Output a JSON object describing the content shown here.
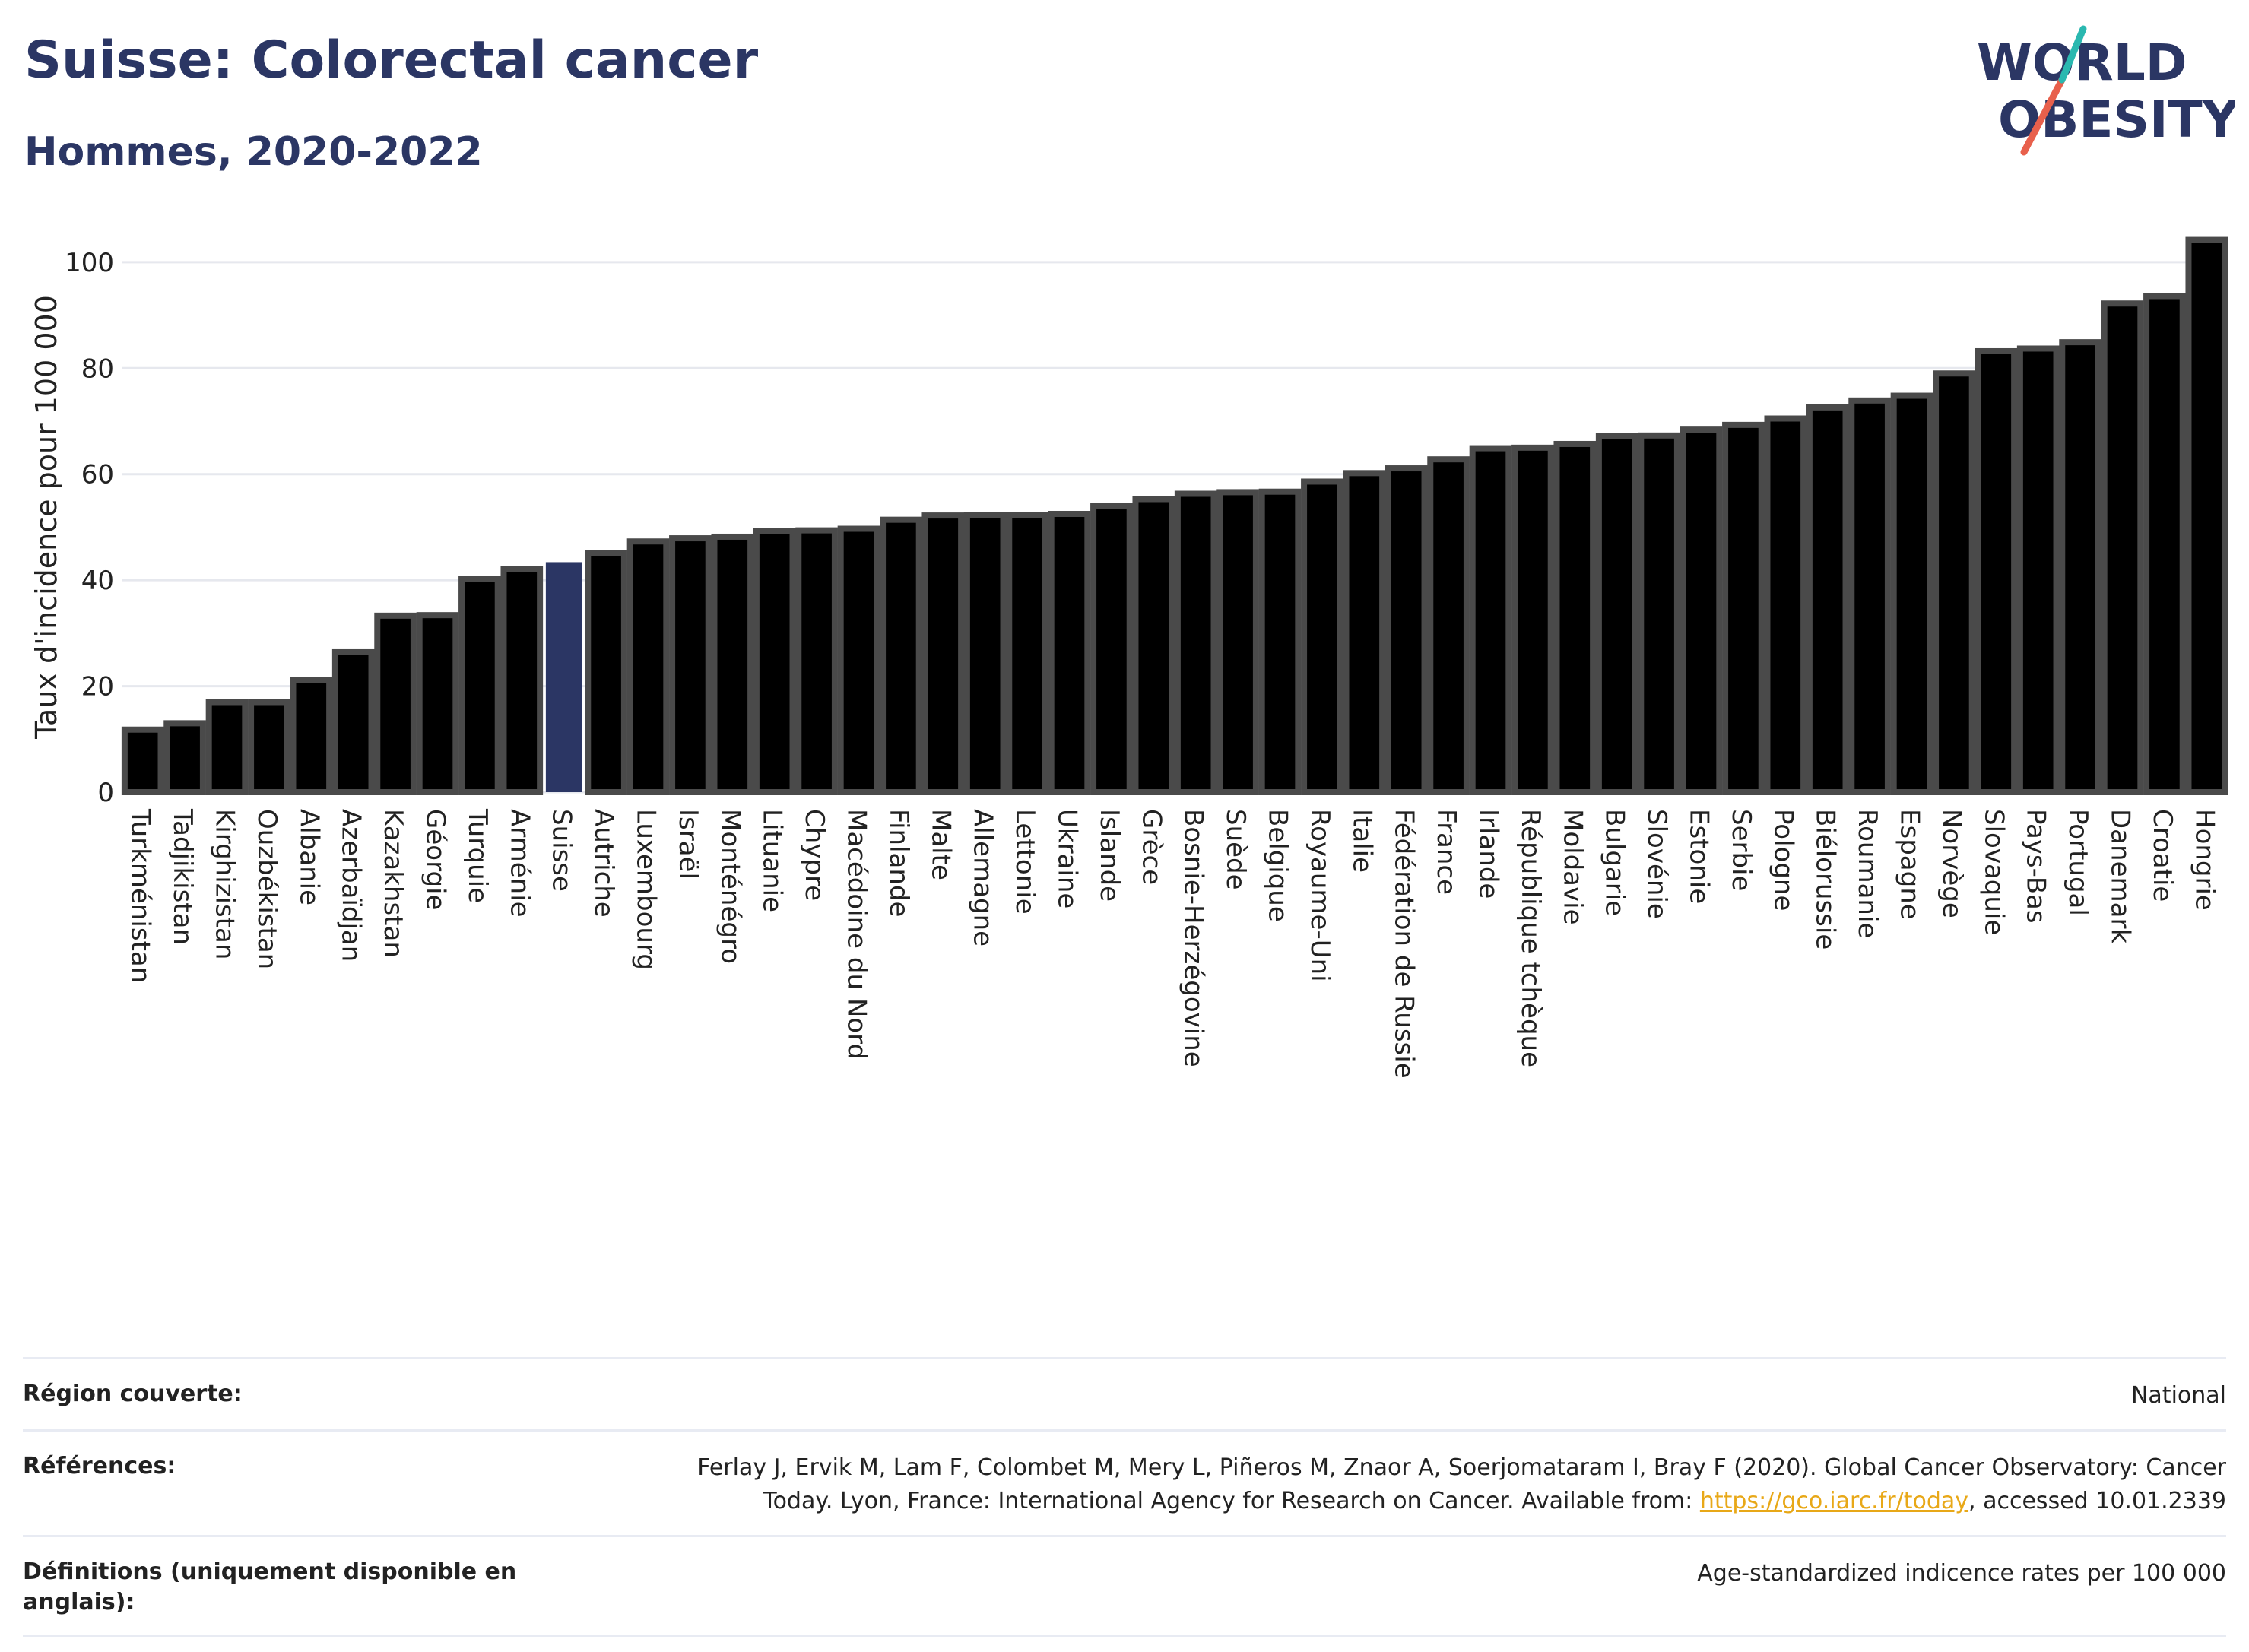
{
  "header": {
    "title": "Suisse: Colorectal cancer",
    "subtitle": "Hommes, 2020-2022"
  },
  "logo": {
    "line1": "WORLD",
    "line2": "OBESITY"
  },
  "chart_data": {
    "type": "bar",
    "ylabel": "Taux d'incidence pour 100 000",
    "ylim": [
      0,
      105
    ],
    "yticks": [
      0,
      20,
      40,
      60,
      80,
      100
    ],
    "grid": true,
    "highlight": "Suisse",
    "highlight_color": "#2b3664",
    "bar_color": "#000000",
    "bar_outline_color": "#4a4a4a",
    "categories": [
      "Turkménistan",
      "Tadjikistan",
      "Kirghizistan",
      "Ouzbékistan",
      "Albanie",
      "Azerbaïdjan",
      "Kazakhstan",
      "Géorgie",
      "Turquie",
      "Arménie",
      "Suisse",
      "Autriche",
      "Luxembourg",
      "Israël",
      "Monténégro",
      "Lituanie",
      "Chypre",
      "Macédoine du Nord",
      "Finlande",
      "Malte",
      "Allemagne",
      "Lettonie",
      "Ukraine",
      "Islande",
      "Grèce",
      "Bosnie-Herzégovine",
      "Suède",
      "Belgique",
      "Royaume-Uni",
      "Italie",
      "Fédération de Russie",
      "France",
      "Irlande",
      "République tchèque",
      "Moldavie",
      "Bulgarie",
      "Slovénie",
      "Estonie",
      "Serbie",
      "Pologne",
      "Biélorussie",
      "Roumanie",
      "Espagne",
      "Norvège",
      "Slovaquie",
      "Pays-Bas",
      "Portugal",
      "Danemark",
      "Croatie",
      "Hongrie"
    ],
    "values": [
      11.8,
      13.0,
      17.0,
      17.0,
      21.2,
      26.4,
      33.3,
      33.4,
      40.2,
      42.1,
      43.4,
      45.1,
      47.3,
      47.9,
      48.2,
      49.2,
      49.4,
      49.7,
      51.4,
      52.2,
      52.3,
      52.3,
      52.5,
      54.0,
      55.3,
      56.3,
      56.6,
      56.7,
      58.6,
      60.2,
      61.1,
      62.8,
      64.9,
      65.0,
      65.7,
      67.2,
      67.3,
      68.4,
      69.3,
      70.5,
      72.6,
      73.9,
      74.8,
      79.0,
      83.2,
      83.7,
      84.9,
      92.2,
      93.6,
      104.2
    ]
  },
  "meta": {
    "region_label": "Région couverte:",
    "region_value": "National",
    "refs_label": "Références:",
    "refs_text_1": "Ferlay J, Ervik M, Lam F, Colombet M, Mery L, Piñeros M, Znaor A, Soerjomataram I, Bray F (2020). Global Cancer Observatory: Cancer",
    "refs_text_2": "Today. Lyon, France: International Agency for Research on Cancer. Available from: ",
    "refs_link": "https://gco.iarc.fr/today",
    "refs_text_3": ", accessed 10.01.2339",
    "defs_label": "Définitions (uniquement disponible en anglais):",
    "defs_value": "Age-standardized indicence rates per 100 000"
  }
}
